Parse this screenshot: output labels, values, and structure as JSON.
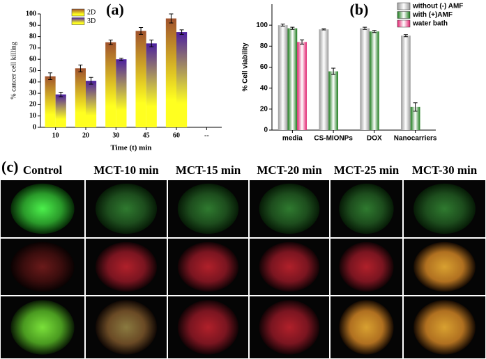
{
  "chart_data": [
    {
      "type": "bar",
      "title": "(a)",
      "xlabel": "Time (t) min",
      "ylabel": "% cancer cell killing",
      "categories": [
        "10",
        "20",
        "30",
        "45",
        "60",
        "--"
      ],
      "series": [
        {
          "name": "2D",
          "color": "#a0522d",
          "values": [
            45,
            52,
            75,
            85,
            96,
            null
          ],
          "errors": [
            3,
            3,
            2,
            3,
            4,
            null
          ]
        },
        {
          "name": "3D",
          "color": "#4b1fa0",
          "values": [
            29,
            41,
            60,
            74,
            84,
            null
          ],
          "errors": [
            2,
            3,
            1,
            3,
            2,
            null
          ]
        }
      ],
      "ylim": [
        0,
        100
      ],
      "yticks": [
        0,
        10,
        20,
        30,
        40,
        50,
        60,
        70,
        80,
        90,
        100
      ],
      "legend": "upper-left"
    },
    {
      "type": "bar",
      "title": "(b)",
      "ylabel": "% Cell viability",
      "categories": [
        "media",
        "CS-MIONPs",
        "DOX",
        "Nanocarriers"
      ],
      "series": [
        {
          "name": "without (-) AMF",
          "color": "#9a9a9a",
          "values": [
            100,
            96,
            97,
            90
          ],
          "errors": [
            1,
            0.5,
            1,
            1
          ]
        },
        {
          "name": "with (+)AMF",
          "color": "#1a7a1a",
          "values": [
            97,
            56,
            94,
            22
          ],
          "errors": [
            1,
            3,
            1,
            4
          ]
        },
        {
          "name": "water bath",
          "color": "#e0206e",
          "values": [
            84,
            null,
            null,
            null
          ],
          "errors": [
            2,
            null,
            null,
            null
          ]
        }
      ],
      "ylim": [
        0,
        120
      ],
      "yticks": [
        0,
        20,
        40,
        60,
        80,
        100
      ],
      "legend": "upper-right"
    }
  ],
  "panel_c": {
    "label": "(c)",
    "columns": [
      "Control",
      "MCT-10 min",
      "MCT-15 min",
      "MCT-20 min",
      "MCT-25 min",
      "MCT-30 min"
    ]
  }
}
